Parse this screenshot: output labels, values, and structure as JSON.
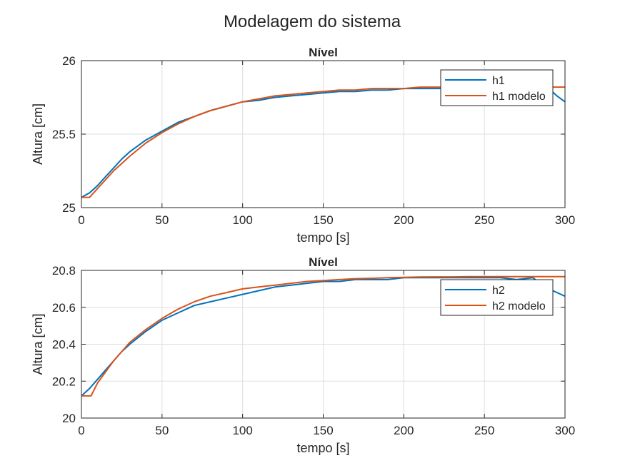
{
  "figure_title": "Modelagem do sistema",
  "colors": {
    "series_1": "#0072BD",
    "series_2": "#D95319",
    "grid": "#dfdfdf",
    "axes": "#262626"
  },
  "chart_data": [
    {
      "type": "line",
      "title": "Nível",
      "xlabel": "tempo [s]",
      "ylabel": "Altura [cm]",
      "xlim": [
        0,
        300
      ],
      "ylim": [
        25,
        26
      ],
      "xticks": [
        0,
        50,
        100,
        150,
        200,
        250,
        300
      ],
      "yticks": [
        25,
        25.5,
        26
      ],
      "ytick_labels": [
        "25",
        "25.5",
        "26"
      ],
      "grid": true,
      "legend_position": "top-right",
      "series": [
        {
          "name": "h1",
          "x": [
            0,
            5,
            10,
            15,
            20,
            25,
            30,
            40,
            50,
            60,
            70,
            80,
            90,
            100,
            110,
            120,
            130,
            140,
            150,
            160,
            170,
            180,
            190,
            200,
            210,
            220,
            230,
            240,
            250,
            260,
            270,
            280,
            290,
            295,
            300
          ],
          "y": [
            25.07,
            25.1,
            25.15,
            25.21,
            25.27,
            25.33,
            25.38,
            25.46,
            25.52,
            25.58,
            25.62,
            25.66,
            25.69,
            25.72,
            25.73,
            25.75,
            25.76,
            25.77,
            25.78,
            25.79,
            25.79,
            25.8,
            25.8,
            25.81,
            25.81,
            25.81,
            25.81,
            25.82,
            25.81,
            25.81,
            25.81,
            25.82,
            25.81,
            25.76,
            25.72
          ]
        },
        {
          "name": "h1 modelo",
          "x": [
            0,
            5,
            10,
            15,
            20,
            25,
            30,
            40,
            50,
            60,
            70,
            80,
            90,
            100,
            110,
            120,
            130,
            140,
            150,
            160,
            170,
            180,
            190,
            200,
            210,
            220,
            230,
            240,
            250,
            260,
            270,
            280,
            290,
            300
          ],
          "y": [
            25.07,
            25.07,
            25.13,
            25.19,
            25.25,
            25.3,
            25.35,
            25.44,
            25.51,
            25.57,
            25.62,
            25.66,
            25.69,
            25.72,
            25.74,
            25.76,
            25.77,
            25.78,
            25.79,
            25.8,
            25.8,
            25.81,
            25.81,
            25.81,
            25.82,
            25.82,
            25.82,
            25.82,
            25.82,
            25.82,
            25.82,
            25.82,
            25.82,
            25.82
          ]
        }
      ]
    },
    {
      "type": "line",
      "title": "Nível",
      "xlabel": "tempo [s]",
      "ylabel": "Altura [cm]",
      "xlim": [
        0,
        300
      ],
      "ylim": [
        20,
        20.8
      ],
      "xticks": [
        0,
        50,
        100,
        150,
        200,
        250,
        300
      ],
      "yticks": [
        20,
        20.2,
        20.4,
        20.6,
        20.8
      ],
      "ytick_labels": [
        "20",
        "20.2",
        "20.4",
        "20.6",
        "20.8"
      ],
      "grid": true,
      "legend_position": "top-right",
      "series": [
        {
          "name": "h2",
          "x": [
            0,
            5,
            10,
            15,
            20,
            25,
            30,
            40,
            50,
            60,
            70,
            80,
            90,
            100,
            110,
            120,
            130,
            140,
            150,
            160,
            170,
            180,
            190,
            200,
            210,
            220,
            230,
            240,
            250,
            260,
            270,
            280,
            290,
            300
          ],
          "y": [
            20.12,
            20.16,
            20.21,
            20.26,
            20.31,
            20.36,
            20.4,
            20.47,
            20.53,
            20.57,
            20.61,
            20.63,
            20.65,
            20.67,
            20.69,
            20.71,
            20.72,
            20.73,
            20.74,
            20.74,
            20.75,
            20.75,
            20.75,
            20.76,
            20.76,
            20.76,
            20.76,
            20.76,
            20.76,
            20.76,
            20.75,
            20.76,
            20.7,
            20.66
          ]
        },
        {
          "name": "h2 modelo",
          "x": [
            0,
            6,
            10,
            15,
            20,
            25,
            30,
            40,
            50,
            60,
            70,
            80,
            90,
            100,
            110,
            120,
            130,
            140,
            150,
            160,
            170,
            180,
            190,
            200,
            210,
            220,
            230,
            240,
            250,
            260,
            270,
            280,
            290,
            300
          ],
          "y": [
            20.12,
            20.12,
            20.19,
            20.25,
            20.31,
            20.36,
            20.41,
            20.48,
            20.54,
            20.59,
            20.63,
            20.66,
            20.68,
            20.7,
            20.71,
            20.72,
            20.73,
            20.74,
            20.745,
            20.75,
            20.755,
            20.757,
            20.76,
            20.762,
            20.764,
            20.765,
            20.765,
            20.766,
            20.766,
            20.766,
            20.766,
            20.766,
            20.766,
            20.766
          ]
        }
      ]
    }
  ]
}
